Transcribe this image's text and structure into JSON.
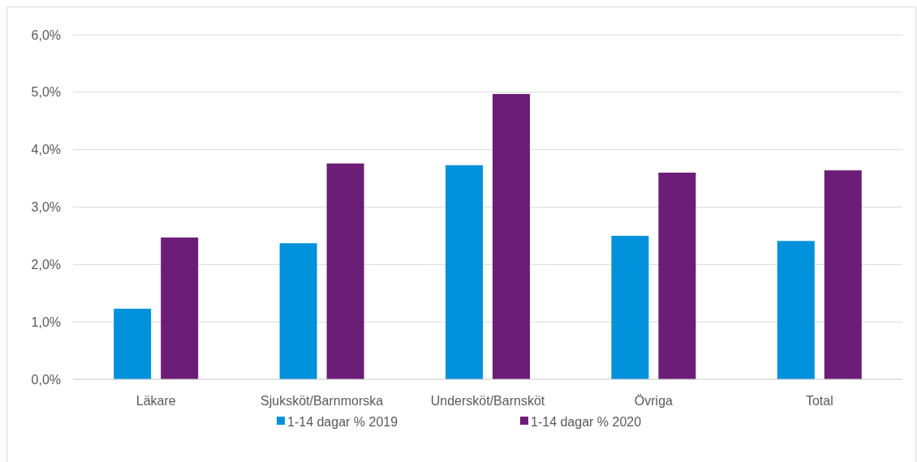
{
  "chart_data": {
    "type": "bar",
    "categories": [
      "Läkare",
      "Sjuksköt/Barnmorska",
      "Undersköt/Barnsköt",
      "Övriga",
      "Total"
    ],
    "series": [
      {
        "name": "1-14 dagar % 2019",
        "color": "#0091da",
        "values": [
          1.23,
          2.37,
          3.73,
          2.5,
          2.41
        ]
      },
      {
        "name": "1-14 dagar % 2020",
        "color": "#6c1d77",
        "values": [
          2.47,
          3.76,
          4.97,
          3.6,
          3.64
        ]
      }
    ],
    "ylim": [
      0,
      6
    ],
    "yticks": [
      {
        "value": 0,
        "label": "0,0%"
      },
      {
        "value": 1,
        "label": "1,0%"
      },
      {
        "value": 2,
        "label": "2,0%"
      },
      {
        "value": 3,
        "label": "3,0%"
      },
      {
        "value": 4,
        "label": "4,0%"
      },
      {
        "value": 5,
        "label": "5,0%"
      },
      {
        "value": 6,
        "label": "6,0%"
      }
    ],
    "grid": "y",
    "legend": "bottom"
  }
}
